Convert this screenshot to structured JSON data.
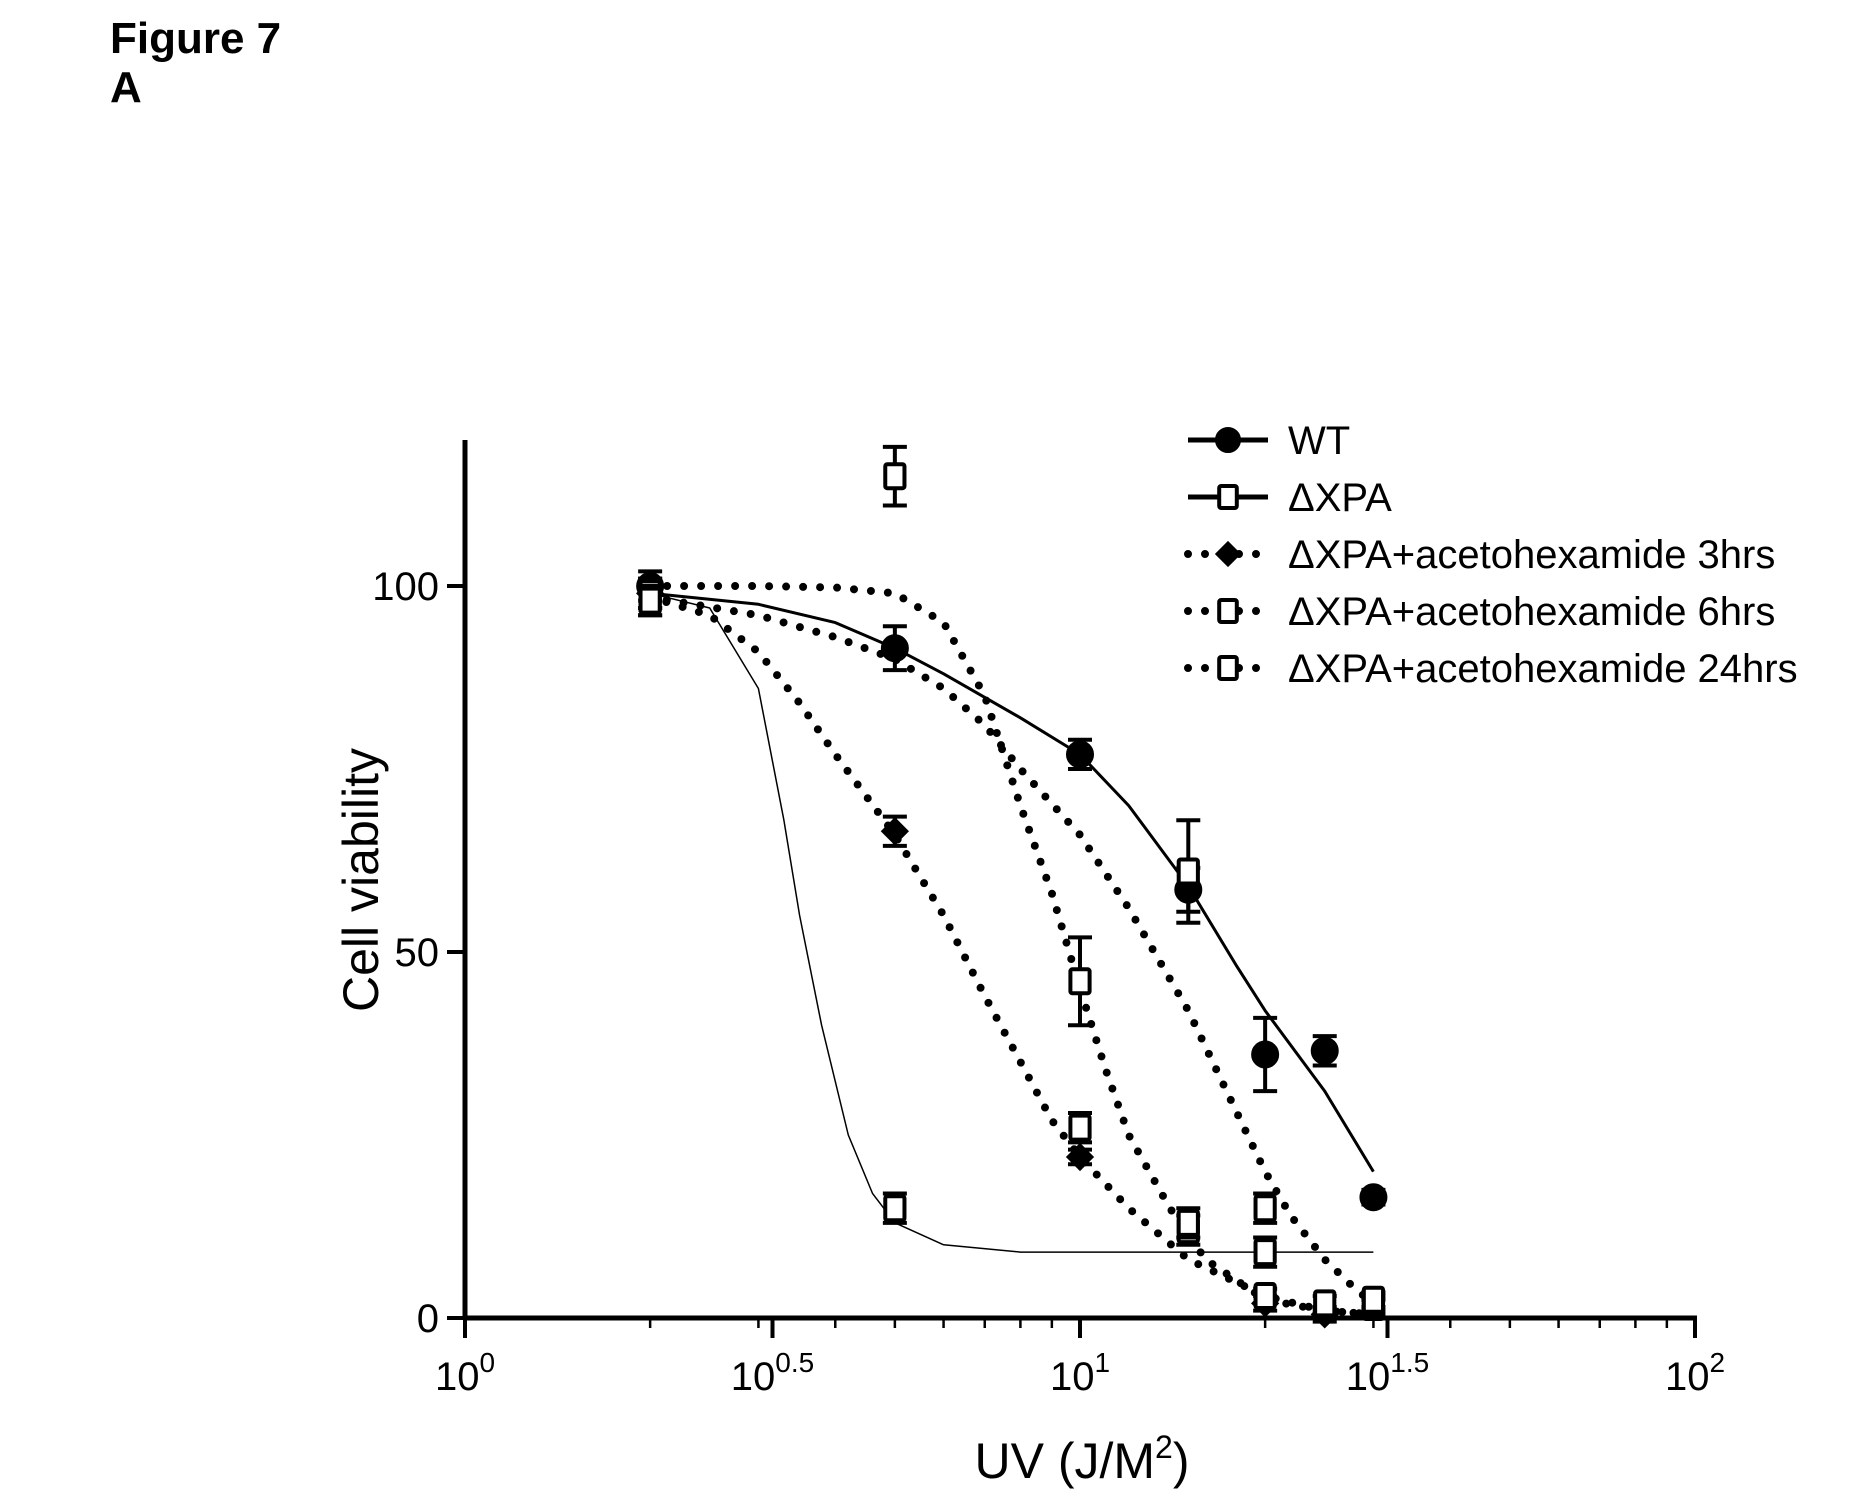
{
  "figure": {
    "title": "Figure 7",
    "panel": "A"
  },
  "chart_data": {
    "type": "scatter",
    "xlabel": "UV  (J/M2)",
    "ylabel": "Cell viability",
    "x_scale": "log10",
    "xlim": [
      1,
      100
    ],
    "ylim": [
      0,
      120
    ],
    "x_ticks": [
      {
        "value": 1,
        "base": "10",
        "exp": "0"
      },
      {
        "value": 3.1623,
        "base": "10",
        "exp": "0.5"
      },
      {
        "value": 10,
        "base": "10",
        "exp": "1"
      },
      {
        "value": 31.623,
        "base": "10",
        "exp": "1.5"
      },
      {
        "value": 100,
        "base": "10",
        "exp": "2"
      }
    ],
    "y_ticks": [
      {
        "value": 0,
        "label": "0"
      },
      {
        "value": 50,
        "label": "50"
      },
      {
        "value": 100,
        "label": "100"
      }
    ],
    "legend_position": "top-right",
    "series": [
      {
        "name": "WT",
        "marker": "circle",
        "filled": true,
        "line": "solid",
        "line_width": 3,
        "points": [
          {
            "x": 2,
            "y": 100,
            "err": 2
          },
          {
            "x": 5,
            "y": 91.5,
            "err": 3
          },
          {
            "x": 10,
            "y": 77,
            "err": 2
          },
          {
            "x": 15,
            "y": 58.5,
            "err": 3
          },
          {
            "x": 20,
            "y": 36,
            "err": 5
          },
          {
            "x": 25,
            "y": 36.5,
            "err": 2
          },
          {
            "x": 30,
            "y": 16.5,
            "err": 1
          }
        ],
        "curve": [
          [
            2,
            99
          ],
          [
            3,
            97.5
          ],
          [
            4,
            95
          ],
          [
            5,
            91.5
          ],
          [
            6,
            88
          ],
          [
            8,
            82
          ],
          [
            10,
            77
          ],
          [
            12,
            70
          ],
          [
            15,
            59
          ],
          [
            18,
            48
          ],
          [
            20,
            42
          ],
          [
            25,
            31
          ],
          [
            30,
            20
          ]
        ]
      },
      {
        "name": "ΔXPA",
        "marker": "square",
        "filled": false,
        "line": "solid",
        "line_width": 1.5,
        "points": [
          {
            "x": 2,
            "y": 98,
            "err": 2
          },
          {
            "x": 5,
            "y": 15,
            "err": 2
          },
          {
            "x": 10,
            "y": 26,
            "err": 2
          },
          {
            "x": 15,
            "y": 12,
            "err": 2
          },
          {
            "x": 20,
            "y": 9,
            "err": 2
          },
          {
            "x": 30,
            "y": 1.5,
            "err": 1
          }
        ],
        "curve": [
          [
            2,
            99
          ],
          [
            2.5,
            97
          ],
          [
            3,
            86
          ],
          [
            3.3,
            68
          ],
          [
            3.5,
            55
          ],
          [
            3.8,
            40
          ],
          [
            4.2,
            25
          ],
          [
            4.6,
            17
          ],
          [
            5,
            13
          ],
          [
            6,
            10
          ],
          [
            8,
            9
          ],
          [
            30,
            9
          ]
        ]
      },
      {
        "name": "ΔXPA+acetohexamide 3hrs",
        "marker": "diamond",
        "filled": true,
        "line": "dotted",
        "line_width": 8,
        "points": [
          {
            "x": 2,
            "y": 99,
            "err": 2
          },
          {
            "x": 5,
            "y": 66.5,
            "err": 2
          },
          {
            "x": 10,
            "y": 22,
            "err": 1
          },
          {
            "x": 20,
            "y": 2,
            "err": 1
          },
          {
            "x": 25,
            "y": 0.5,
            "err": 1
          }
        ],
        "curve": [
          [
            2,
            98.5
          ],
          [
            2.5,
            96
          ],
          [
            3,
            91
          ],
          [
            3.5,
            84
          ],
          [
            4,
            77
          ],
          [
            5,
            66
          ],
          [
            6,
            55
          ],
          [
            7,
            44
          ],
          [
            8,
            35
          ],
          [
            9,
            27
          ],
          [
            10,
            22
          ],
          [
            12,
            15
          ],
          [
            15,
            8
          ],
          [
            20,
            3
          ],
          [
            25,
            1
          ],
          [
            30,
            0.5
          ]
        ]
      },
      {
        "name": "ΔXPA+acetohexamide 6hrs",
        "marker": "square",
        "filled": false,
        "line": "dotted",
        "line_width": 8,
        "points": [
          {
            "x": 2,
            "y": 99,
            "err": 2
          },
          {
            "x": 5,
            "y": 115,
            "err": 4
          },
          {
            "x": 10,
            "y": 46,
            "err": 6
          },
          {
            "x": 15,
            "y": 61,
            "err": 7
          },
          {
            "x": 20,
            "y": 15,
            "err": 2
          },
          {
            "x": 30,
            "y": 2,
            "err": 1
          }
        ],
        "curve": [
          [
            2,
            100
          ],
          [
            3,
            100
          ],
          [
            4,
            99.8
          ],
          [
            5,
            99
          ],
          [
            6,
            95
          ],
          [
            7,
            85
          ],
          [
            8,
            70
          ],
          [
            9,
            58
          ],
          [
            10,
            45
          ],
          [
            11,
            34
          ],
          [
            12,
            25
          ],
          [
            14,
            15
          ],
          [
            16,
            8
          ],
          [
            20,
            2.5
          ],
          [
            25,
            1
          ],
          [
            30,
            0.5
          ]
        ]
      },
      {
        "name": "ΔXPA+acetohexamide 24hrs",
        "marker": "square",
        "filled": false,
        "line": "dotted",
        "line_width": 8,
        "points": [
          {
            "x": 2,
            "y": 98,
            "err": 2
          },
          {
            "x": 15,
            "y": 13,
            "err": 2
          },
          {
            "x": 20,
            "y": 3,
            "err": 1
          },
          {
            "x": 25,
            "y": 2,
            "err": 1
          },
          {
            "x": 30,
            "y": 2.5,
            "err": 1
          }
        ],
        "curve": [
          [
            2,
            98.5
          ],
          [
            3,
            96
          ],
          [
            4,
            93
          ],
          [
            5,
            90
          ],
          [
            6,
            86
          ],
          [
            7,
            81
          ],
          [
            8,
            75
          ],
          [
            10,
            66
          ],
          [
            12,
            56
          ],
          [
            15,
            42
          ],
          [
            18,
            28
          ],
          [
            20,
            20
          ],
          [
            22,
            14
          ],
          [
            25,
            8
          ],
          [
            28,
            4
          ],
          [
            30,
            2
          ]
        ]
      }
    ]
  }
}
